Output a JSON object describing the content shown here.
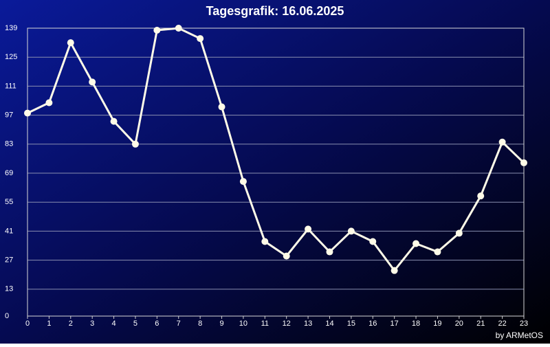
{
  "chart_data": {
    "type": "line",
    "title": "Tagesgrafik: 16.06.2025",
    "footer": "by ARMetOS",
    "x": [
      0,
      1,
      2,
      3,
      4,
      5,
      6,
      7,
      8,
      9,
      10,
      11,
      12,
      13,
      14,
      15,
      16,
      17,
      18,
      19,
      20,
      21,
      22,
      23
    ],
    "xlim": [
      0,
      23
    ],
    "xticks": [
      0,
      1,
      2,
      3,
      4,
      5,
      6,
      7,
      8,
      9,
      10,
      11,
      12,
      13,
      14,
      15,
      16,
      17,
      18,
      19,
      20,
      21,
      22,
      23
    ],
    "series": [
      {
        "color": "#fffbe8",
        "values": [
          98,
          103,
          132,
          113,
          94,
          83,
          138,
          139,
          134,
          101,
          65,
          36,
          29,
          42,
          31,
          41,
          36,
          22,
          35,
          31,
          40,
          58,
          84,
          74
        ]
      }
    ],
    "ylim": [
      0,
      139
    ],
    "yticks": [
      0,
      13,
      27,
      41,
      55,
      69,
      83,
      97,
      111,
      125,
      139
    ],
    "grid": true
  }
}
